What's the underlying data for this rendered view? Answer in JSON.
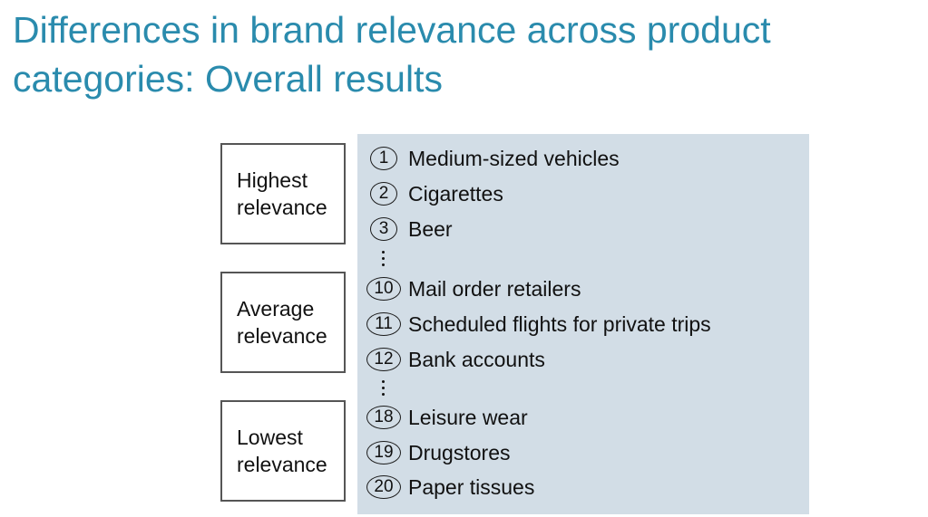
{
  "title": "Differences in brand relevance across product categories: Overall results",
  "groups": [
    {
      "label_line1": "Highest",
      "label_line2": "relevance",
      "items": [
        {
          "rank": "1",
          "name": "Medium-sized vehicles"
        },
        {
          "rank": "2",
          "name": "Cigarettes"
        },
        {
          "rank": "3",
          "name": "Beer"
        }
      ]
    },
    {
      "label_line1": "Average",
      "label_line2": "relevance",
      "items": [
        {
          "rank": "10",
          "name": "Mail order retailers"
        },
        {
          "rank": "11",
          "name": "Scheduled flights for private trips"
        },
        {
          "rank": "12",
          "name": "Bank accounts"
        }
      ]
    },
    {
      "label_line1": "Lowest",
      "label_line2": "relevance",
      "items": [
        {
          "rank": "18",
          "name": "Leisure wear"
        },
        {
          "rank": "19",
          "name": "Drugstores"
        },
        {
          "rank": "20",
          "name": "Paper tissues"
        }
      ]
    }
  ],
  "colors": {
    "title": "#2a8bad",
    "panel": "#d2dde6",
    "box_border": "#555555"
  }
}
